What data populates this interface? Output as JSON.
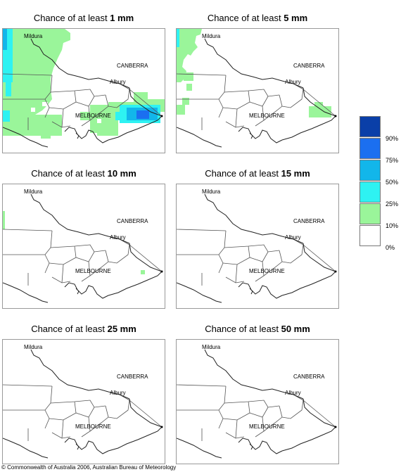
{
  "panels": [
    {
      "title_prefix": "Chance of at least ",
      "amount": "1 mm"
    },
    {
      "title_prefix": "Chance of at least ",
      "amount": "5 mm"
    },
    {
      "title_prefix": "Chance of at least ",
      "amount": "10 mm"
    },
    {
      "title_prefix": "Chance of at least ",
      "amount": "15 mm"
    },
    {
      "title_prefix": "Chance of at least ",
      "amount": "25 mm"
    },
    {
      "title_prefix": "Chance of at least ",
      "amount": "50 mm"
    }
  ],
  "cities": {
    "mildura": "Mildura",
    "canberra": "CANBERRA",
    "albury": "Albury",
    "melbourne": "MELBOURNE"
  },
  "legend": {
    "labels": [
      "90%",
      "75%",
      "50%",
      "25%",
      "10%",
      "0%"
    ],
    "colors": [
      "#0a3fa8",
      "#1b6ff0",
      "#12b6ea",
      "#2ef2f2",
      "#9af59a",
      "#ffffff"
    ]
  },
  "colors": {
    "boundary": "#555555",
    "coast": "#222222",
    "frame": "#999999"
  },
  "copyright": "© Commonwealth of Australia 2006, Australian Bureau of Meteorology"
}
